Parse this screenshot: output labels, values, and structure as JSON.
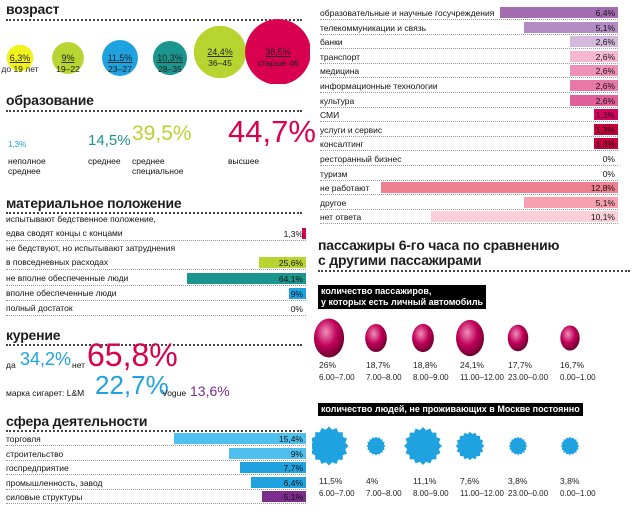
{
  "colors": {
    "magenta": "#d8005f",
    "yellow": "#f2f21e",
    "lime": "#b8d431",
    "blue": "#1fa3e0",
    "teal": "#1a968e",
    "green": "#a6d43a",
    "crimson": "#d9004f",
    "purple": "#7c2c8c",
    "lightblue": "#4fc0ee",
    "pink": "#e0609a",
    "salmon": "#ef8090",
    "lightpink": "#f6b8c8"
  },
  "age": {
    "title": "возраст",
    "items": [
      {
        "pct": "6,3%",
        "label": "до 19 лет",
        "color": "#f2f21e"
      },
      {
        "pct": "9%",
        "label": "19–22",
        "color": "#b8d431"
      },
      {
        "pct": "11,5%",
        "label": "23–27",
        "color": "#1fa3e0"
      },
      {
        "pct": "10,3%",
        "label": "28–35",
        "color": "#1a968e"
      },
      {
        "pct": "24,4%",
        "label": "36–45",
        "color": "#b8d431"
      },
      {
        "pct": "38,5%",
        "label": "старше 46",
        "color": "#d9004f"
      }
    ]
  },
  "education": {
    "title": "образование",
    "items": [
      {
        "pct": "1,3%",
        "label": "неполное\nсреднее",
        "color": "#1fa3e0"
      },
      {
        "pct": "14,5%",
        "label": "среднее",
        "color": "#1a968e"
      },
      {
        "pct": "39,5%",
        "label": "среднее\nспециальное",
        "color": "#b8d431"
      },
      {
        "pct": "44,7%",
        "label": "высшее",
        "color": "#d9004f"
      }
    ]
  },
  "material": {
    "title": "материальное положение",
    "rows": [
      {
        "label": "испытывают бедственное положение,\nедва сводят концы с концами",
        "value": 1.3,
        "text": "1,3%",
        "color": "#d9004f"
      },
      {
        "label": "не бедствуют, но испытывают затруднения\nв повседневных расходах",
        "value": 25.6,
        "text": "25,6%",
        "color": "#b8d431"
      },
      {
        "label": "не вполне обеспеченные люди",
        "value": 64.1,
        "text": "64,1%",
        "color": "#1a968e"
      },
      {
        "label": "вполне обеспеченные люди",
        "value": 9,
        "text": "9%",
        "color": "#1fa3e0"
      },
      {
        "label": "полный достаток",
        "value": 0,
        "text": "0%",
        "color": "#7c2c8c"
      }
    ]
  },
  "smoking": {
    "title": "курение",
    "yes_label": "да",
    "yes": "34,2%",
    "no_label": "нет",
    "no": "65,8%",
    "brand_label": "марка сигарет: L&M",
    "lm": "22,7%",
    "vogue_label": "Vogue",
    "vogue": "13,6%"
  },
  "sphere": {
    "title": "сфера деятельности",
    "rows": [
      {
        "label": "торговля",
        "value": 15.4,
        "text": "15,4%",
        "color": "#4fc0ee"
      },
      {
        "label": "строительство",
        "value": 9,
        "text": "9%",
        "color": "#4fc0ee"
      },
      {
        "label": "госпредприятие",
        "value": 7.7,
        "text": "7,7%",
        "color": "#1fa3e0"
      },
      {
        "label": "промышленность, завод",
        "value": 6.4,
        "text": "6,4%",
        "color": "#1fa3e0"
      },
      {
        "label": "силовые структуры",
        "value": 5.1,
        "text": "5,1%",
        "color": "#7c2c8c"
      }
    ]
  },
  "sphere2": {
    "rows": [
      {
        "label": "образовательные и научные госучреждения",
        "value": 6.4,
        "text": "6,4%",
        "color": "#a36bb0"
      },
      {
        "label": "телекоммуникации и связь",
        "value": 5.1,
        "text": "5,1%",
        "color": "#b48cc4"
      },
      {
        "label": "банки",
        "value": 2.6,
        "text": "2,6%",
        "color": "#d4b8de"
      },
      {
        "label": "транспорт",
        "value": 2.6,
        "text": "2,6%",
        "color": "#f6b8d0"
      },
      {
        "label": "медицина",
        "value": 2.6,
        "text": "2,6%",
        "color": "#ef90b8"
      },
      {
        "label": "информационные технологии",
        "value": 2.6,
        "text": "2,6%",
        "color": "#e878a8"
      },
      {
        "label": "культура",
        "value": 2.6,
        "text": "2,6%",
        "color": "#e0609a"
      },
      {
        "label": "СМИ",
        "value": 1.3,
        "text": "1,3%",
        "color": "#d8005f"
      },
      {
        "label": "услуги и сервис",
        "value": 1.3,
        "text": "1,3%",
        "color": "#c4003c"
      },
      {
        "label": "консалтинг",
        "value": 1.3,
        "text": "1,3%",
        "color": "#c4003c"
      },
      {
        "label": "ресторанный бизнес",
        "value": 0,
        "text": "0%",
        "color": "#c4003c"
      },
      {
        "label": "туризм",
        "value": 0,
        "text": "0%",
        "color": "#c4003c"
      },
      {
        "label": "не работают",
        "value": 12.8,
        "text": "12,8%",
        "color": "#ef8090"
      },
      {
        "label": "другое",
        "value": 5.1,
        "text": "5,1%",
        "color": "#f6a0b0"
      },
      {
        "label": "нет ответа",
        "value": 10.1,
        "text": "10,1%",
        "color": "#fbd0d8"
      }
    ]
  },
  "comparison": {
    "title": "пассажиры 6-го часа по сравнению\nс другими пассажирами",
    "car_header": "количество пассажиров,\nу которых есть личный автомобиль",
    "car": [
      {
        "pct": "26%",
        "time": "6.00–7.00",
        "value": 26
      },
      {
        "pct": "18,7%",
        "time": "7.00–8.00",
        "value": 18.7
      },
      {
        "pct": "18,8%",
        "time": "8.00–9.00",
        "value": 18.8
      },
      {
        "pct": "24,1%",
        "time": "11.00–12.00",
        "value": 24.1
      },
      {
        "pct": "17,7%",
        "time": "23.00–0.00",
        "value": 17.7
      },
      {
        "pct": "16,7%",
        "time": "0.00–1.00",
        "value": 16.7
      }
    ],
    "moscow_header": "количество людей, не проживающих в Москве постоянно",
    "moscow": [
      {
        "pct": "11,5%",
        "time": "6.00–7.00",
        "value": 11.5
      },
      {
        "pct": "4%",
        "time": "7.00–8.00",
        "value": 4
      },
      {
        "pct": "11,1%",
        "time": "8.00–9.00",
        "value": 11.1
      },
      {
        "pct": "7,6%",
        "time": "11.00–12.00",
        "value": 7.6
      },
      {
        "pct": "3,8%",
        "time": "23.00–0.00",
        "value": 3.8
      },
      {
        "pct": "3,8%",
        "time": "0.00–1.00",
        "value": 3.8
      }
    ]
  },
  "chart_data": [
    {
      "type": "bubble",
      "title": "возраст",
      "categories": [
        "до 19 лет",
        "19–22",
        "23–27",
        "28–35",
        "36–45",
        "старше 46"
      ],
      "values": [
        6.3,
        9,
        11.5,
        10.3,
        24.4,
        38.5
      ]
    },
    {
      "type": "text",
      "title": "образование",
      "categories": [
        "неполное среднее",
        "среднее",
        "среднее специальное",
        "высшее"
      ],
      "values": [
        1.3,
        14.5,
        39.5,
        44.7
      ]
    },
    {
      "type": "bar",
      "title": "материальное положение",
      "categories": [
        "испытывают бедственное положение, едва сводят концы с концами",
        "не бедствуют, но испытывают затруднения в повседневных расходах",
        "не вполне обеспеченные люди",
        "вполне обеспеченные люди",
        "полный достаток"
      ],
      "values": [
        1.3,
        25.6,
        64.1,
        9,
        0
      ]
    },
    {
      "type": "text",
      "title": "курение",
      "categories": [
        "да",
        "нет",
        "L&M",
        "Vogue"
      ],
      "values": [
        34.2,
        65.8,
        22.7,
        13.6
      ]
    },
    {
      "type": "bar",
      "title": "сфера деятельности",
      "categories": [
        "торговля",
        "строительство",
        "госпредприятие",
        "промышленность, завод",
        "силовые структуры",
        "образовательные и научные госучреждения",
        "телекоммуникации и связь",
        "банки",
        "транспорт",
        "медицина",
        "информационные технологии",
        "культура",
        "СМИ",
        "услуги и сервис",
        "консалтинг",
        "ресторанный бизнес",
        "туризм",
        "не работают",
        "другое",
        "нет ответа"
      ],
      "values": [
        15.4,
        9,
        7.7,
        6.4,
        5.1,
        6.4,
        5.1,
        2.6,
        2.6,
        2.6,
        2.6,
        2.6,
        1.3,
        1.3,
        1.3,
        0,
        0,
        12.8,
        5.1,
        10.1
      ]
    },
    {
      "type": "bubble",
      "title": "количество пассажиров, у которых есть личный автомобиль",
      "categories": [
        "6.00–7.00",
        "7.00–8.00",
        "8.00–9.00",
        "11.00–12.00",
        "23.00–0.00",
        "0.00–1.00"
      ],
      "values": [
        26,
        18.7,
        18.8,
        24.1,
        17.7,
        16.7
      ]
    },
    {
      "type": "bubble",
      "title": "количество людей, не проживающих в Москве постоянно",
      "categories": [
        "6.00–7.00",
        "7.00–8.00",
        "8.00–9.00",
        "11.00–12.00",
        "23.00–0.00",
        "0.00–1.00"
      ],
      "values": [
        11.5,
        4,
        11.1,
        7.6,
        3.8,
        3.8
      ]
    }
  ]
}
